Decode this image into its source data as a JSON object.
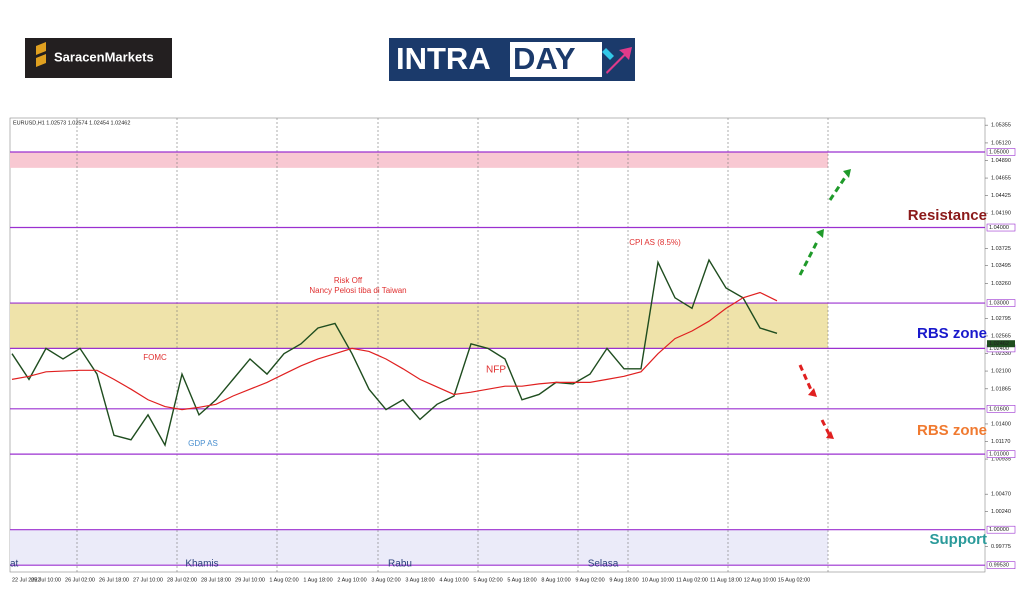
{
  "header": {
    "brand": "SaracenMarkets",
    "title_a": "INTRA",
    "title_b": "DAY"
  },
  "chart_data": {
    "type": "line",
    "symbol_info": "EURUSD,H1  1.02573 1.02574 1.02454 1.02462",
    "categories": [
      "22 Jul 2022",
      null,
      "25 Jul 10:00",
      null,
      "26 Jul 02:00",
      null,
      "26 Jul 18:00",
      null,
      "27 Jul 10:00",
      null,
      "28 Jul 02:00",
      null,
      "28 Jul 18:00",
      null,
      "29 Jul 10:00",
      null,
      "1 Aug 02:00",
      null,
      "1 Aug 18:00",
      null,
      "2 Aug 10:00",
      null,
      "3 Aug 02:00",
      null,
      "3 Aug 18:00",
      null,
      "4 Aug 10:00",
      null,
      "5 Aug 02:00",
      null,
      "5 Aug 18:00",
      null,
      "8 Aug 10:00",
      null,
      "9 Aug 02:00",
      null,
      "9 Aug 18:00",
      null,
      "10 Aug 10:00",
      null,
      "11 Aug 02:00",
      null,
      "11 Aug 18:00",
      null,
      "12 Aug 10:00",
      null,
      "15 Aug 02:00"
    ],
    "series": [
      {
        "color": "#1f4d1f",
        "values": [
          1.0233,
          1.0199,
          1.024,
          1.0226,
          1.024,
          1.0206,
          1.0125,
          1.0119,
          1.0152,
          1.0112,
          1.0206,
          1.0152,
          1.0172,
          1.0199,
          1.0226,
          1.0206,
          1.0233,
          1.0246,
          1.0267,
          1.0273,
          1.0233,
          1.0186,
          1.0159,
          1.0172,
          1.0146,
          1.0166,
          1.0177,
          1.0246,
          1.024,
          1.0226,
          1.0172,
          1.0179,
          1.0195,
          1.0193,
          1.0206,
          1.024,
          1.0213,
          1.0213,
          1.0354,
          1.0307,
          1.0293,
          1.0357,
          1.032,
          1.0307,
          1.0267,
          1.026,
          null
        ]
      },
      {
        "color": "#e02020",
        "values": [
          1.0199,
          1.0203,
          1.0209,
          1.021,
          1.0211,
          1.0211,
          1.0199,
          1.0186,
          1.0172,
          1.0163,
          1.0159,
          1.0162,
          1.0166,
          1.0177,
          1.0186,
          1.0195,
          1.0206,
          1.0217,
          1.0226,
          1.0233,
          1.024,
          1.0236,
          1.0226,
          1.0213,
          1.0199,
          1.0189,
          1.0179,
          1.0182,
          1.0186,
          1.019,
          1.019,
          1.0193,
          1.0195,
          1.0195,
          1.0195,
          1.0199,
          1.0203,
          1.0209,
          1.0233,
          1.0253,
          1.0263,
          1.0276,
          1.0293,
          1.0307,
          1.0314,
          1.0303,
          null
        ]
      }
    ],
    "ylim": [
      0.9944,
      1.0545
    ],
    "yticks": [
      {
        "value": 1.05355,
        "label": "1.05355"
      },
      {
        "value": 1.0512,
        "label": "1.05120"
      },
      {
        "value": 1.0489,
        "label": "1.04890"
      },
      {
        "value": 1.04655,
        "label": "1.04655"
      },
      {
        "value": 1.04425,
        "label": "1.04425"
      },
      {
        "value": 1.0419,
        "label": "1.04190"
      },
      {
        "value": 1.03725,
        "label": "1.03725"
      },
      {
        "value": 1.03495,
        "label": "1.03495"
      },
      {
        "value": 1.0326,
        "label": "1.03260"
      },
      {
        "value": 1.02795,
        "label": "1.02795"
      },
      {
        "value": 1.02565,
        "label": "1.02565"
      },
      {
        "value": 1.0233,
        "label": "1.02330"
      },
      {
        "value": 1.021,
        "label": "1.02100"
      },
      {
        "value": 1.01865,
        "label": "1.01865"
      },
      {
        "value": 1.014,
        "label": "1.01400"
      },
      {
        "value": 1.0117,
        "label": "1.01170"
      },
      {
        "value": 1.00935,
        "label": "1.00935"
      },
      {
        "value": 1.0047,
        "label": "1.00470"
      },
      {
        "value": 1.0024,
        "label": "1.00240"
      },
      {
        "value": 0.99775,
        "label": "0.99775"
      }
    ],
    "last_price": 1.02462,
    "levels": [
      {
        "value": 1.05,
        "label": "1.05000"
      },
      {
        "value": 1.04,
        "label": "1.04000"
      },
      {
        "value": 1.03,
        "label": "1.03000"
      },
      {
        "value": 1.024,
        "label": "1.02400"
      },
      {
        "value": 1.016,
        "label": "1.01600"
      },
      {
        "value": 1.01,
        "label": "1.01000"
      },
      {
        "value": 1.0,
        "label": "1.00000"
      },
      {
        "value": 0.9953,
        "label": "0.99530"
      }
    ],
    "level_color": "#9b30d0",
    "zones": [
      {
        "from": 1.0479,
        "to": 1.05,
        "color": "#f8c8d2"
      },
      {
        "from": 1.024,
        "to": 1.03,
        "color": "#efe3aa"
      },
      {
        "from": 0.9953,
        "to": 1.0,
        "color": "#ebebf9"
      }
    ],
    "annotations": [
      {
        "text": "FOMC",
        "color": "#e03030"
      },
      {
        "text": "GDP AS",
        "color": "#4a90d0"
      },
      {
        "text": "Risk Off",
        "color": "#e03030"
      },
      {
        "text": "Nancy Pelosi tiba di Taiwan",
        "color": "#e03030"
      },
      {
        "text": "NFP",
        "color": "#e03030"
      },
      {
        "text": "CPI AS (8.5%)",
        "color": "#e03030"
      }
    ],
    "zone_labels": [
      {
        "text": "Resistance",
        "color": "#8b1a1a"
      },
      {
        "text": "RBS zone",
        "color": "#1a1acc"
      },
      {
        "text": "RBS zone",
        "color": "#f07a30"
      },
      {
        "text": "Support",
        "color": "#2a9a9a"
      }
    ],
    "day_labels": [
      "at",
      "Khamis",
      "Rabu",
      "Selasa"
    ]
  }
}
